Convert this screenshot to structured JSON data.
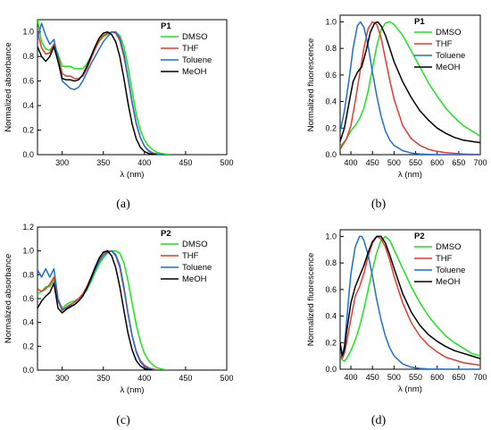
{
  "chart_data": [
    {
      "type": "line",
      "caption": "(a)",
      "title": "P1",
      "xlabel": "λ (nm)",
      "ylabel": "Normalized absorbance",
      "xlim": [
        270,
        500
      ],
      "ylim": [
        0,
        1.1
      ],
      "xticks": [
        "300",
        "350",
        "400",
        "450",
        "500"
      ],
      "yticks": [
        "0.0",
        "0.2",
        "0.4",
        "0.6",
        "0.8",
        "1.0"
      ],
      "legend_position": "top-right",
      "series": [
        {
          "name": "DMSO",
          "color": "#19e619",
          "x": [
            270,
            275,
            280,
            285,
            290,
            295,
            300,
            305,
            310,
            315,
            320,
            325,
            330,
            335,
            340,
            345,
            350,
            355,
            360,
            365,
            370,
            375,
            380,
            385,
            390,
            395,
            400,
            405,
            410,
            415,
            420,
            425,
            430
          ],
          "y": [
            1.1,
            0.92,
            0.86,
            0.85,
            0.9,
            0.82,
            0.72,
            0.72,
            0.72,
            0.7,
            0.7,
            0.7,
            0.74,
            0.8,
            0.86,
            0.92,
            0.96,
            0.98,
            1.0,
            1.0,
            0.97,
            0.88,
            0.72,
            0.52,
            0.33,
            0.2,
            0.12,
            0.07,
            0.04,
            0.02,
            0.01,
            0.005,
            0.0
          ]
        },
        {
          "name": "THF",
          "color": "#e8382c",
          "x": [
            270,
            275,
            280,
            285,
            290,
            295,
            300,
            305,
            310,
            315,
            320,
            325,
            330,
            335,
            340,
            345,
            350,
            355,
            360,
            365,
            370,
            375,
            380,
            385,
            390,
            395,
            400,
            405,
            410,
            415,
            420
          ],
          "y": [
            1.0,
            0.87,
            0.82,
            0.83,
            0.9,
            0.8,
            0.66,
            0.64,
            0.64,
            0.62,
            0.62,
            0.64,
            0.7,
            0.78,
            0.86,
            0.93,
            0.97,
            0.99,
            1.0,
            0.99,
            0.93,
            0.8,
            0.62,
            0.42,
            0.25,
            0.14,
            0.07,
            0.035,
            0.015,
            0.005,
            0.0
          ]
        },
        {
          "name": "Toluene",
          "color": "#1c6fd1",
          "x": [
            270,
            275,
            280,
            285,
            290,
            295,
            300,
            305,
            310,
            315,
            320,
            325,
            330,
            335,
            340,
            345,
            350,
            355,
            360,
            365,
            370,
            375,
            380,
            385,
            390,
            395,
            400,
            405,
            410,
            415,
            420
          ],
          "y": [
            0.95,
            1.07,
            0.97,
            0.9,
            0.94,
            0.78,
            0.6,
            0.57,
            0.54,
            0.53,
            0.55,
            0.6,
            0.67,
            0.74,
            0.8,
            0.86,
            0.92,
            0.96,
            1.0,
            1.0,
            0.95,
            0.82,
            0.63,
            0.43,
            0.26,
            0.14,
            0.07,
            0.03,
            0.01,
            0.005,
            0.0
          ]
        },
        {
          "name": "MeOH",
          "color": "#000000",
          "x": [
            270,
            275,
            280,
            285,
            290,
            295,
            300,
            305,
            310,
            315,
            320,
            325,
            330,
            335,
            340,
            345,
            350,
            355,
            360,
            365,
            370,
            375,
            380,
            385,
            390,
            395,
            400,
            405,
            410,
            415
          ],
          "y": [
            0.88,
            0.8,
            0.76,
            0.8,
            0.88,
            0.76,
            0.62,
            0.61,
            0.61,
            0.6,
            0.61,
            0.65,
            0.72,
            0.8,
            0.88,
            0.95,
            0.99,
            1.0,
            0.98,
            0.92,
            0.8,
            0.62,
            0.42,
            0.25,
            0.13,
            0.06,
            0.025,
            0.01,
            0.003,
            0.0
          ]
        }
      ]
    },
    {
      "type": "line",
      "caption": "(b)",
      "title": "P1",
      "xlabel": "λ (nm)",
      "ylabel": "Normalized fluorescence",
      "xlim": [
        375,
        700
      ],
      "ylim": [
        0,
        1.05
      ],
      "xticks": [
        "400",
        "450",
        "500",
        "550",
        "600",
        "650",
        "700"
      ],
      "yticks": [
        "0.0",
        "0.2",
        "0.4",
        "0.6",
        "0.8",
        "1.0"
      ],
      "legend_position": "top-right",
      "series": [
        {
          "name": "DMSO",
          "color": "#19e619",
          "x": [
            375,
            390,
            400,
            410,
            420,
            430,
            440,
            450,
            460,
            470,
            480,
            490,
            500,
            520,
            540,
            560,
            580,
            600,
            620,
            640,
            660,
            680,
            700
          ],
          "y": [
            0.06,
            0.12,
            0.18,
            0.22,
            0.27,
            0.35,
            0.48,
            0.65,
            0.82,
            0.94,
            0.99,
            1.0,
            0.98,
            0.9,
            0.78,
            0.66,
            0.54,
            0.44,
            0.35,
            0.28,
            0.22,
            0.18,
            0.14
          ]
        },
        {
          "name": "THF",
          "color": "#e8382c",
          "x": [
            375,
            390,
            400,
            410,
            420,
            430,
            440,
            450,
            460,
            470,
            480,
            490,
            500,
            520,
            540,
            560,
            580,
            600,
            620,
            640,
            660,
            680,
            700
          ],
          "y": [
            0.04,
            0.12,
            0.22,
            0.4,
            0.6,
            0.8,
            0.95,
            1.0,
            0.98,
            0.88,
            0.72,
            0.56,
            0.42,
            0.22,
            0.12,
            0.07,
            0.04,
            0.025,
            0.015,
            0.01,
            0.005,
            0.003,
            0.002
          ]
        },
        {
          "name": "Toluene",
          "color": "#1c6fd1",
          "x": [
            375,
            385,
            395,
            405,
            415,
            422,
            430,
            440,
            450,
            460,
            470,
            480,
            490,
            500,
            520,
            540,
            560,
            580,
            600,
            650,
            700
          ],
          "y": [
            0.17,
            0.33,
            0.55,
            0.8,
            0.97,
            1.0,
            0.96,
            0.82,
            0.62,
            0.44,
            0.29,
            0.18,
            0.11,
            0.07,
            0.03,
            0.012,
            0.005,
            0.002,
            0.001,
            0.0,
            0.0
          ]
        },
        {
          "name": "MeOH",
          "color": "#000000",
          "x": [
            375,
            385,
            395,
            405,
            415,
            425,
            435,
            445,
            455,
            462,
            470,
            480,
            490,
            500,
            520,
            540,
            560,
            580,
            600,
            620,
            640,
            660,
            680,
            700
          ],
          "y": [
            0.1,
            0.2,
            0.38,
            0.55,
            0.62,
            0.66,
            0.78,
            0.92,
            0.99,
            1.0,
            0.97,
            0.9,
            0.8,
            0.7,
            0.55,
            0.43,
            0.33,
            0.26,
            0.2,
            0.16,
            0.13,
            0.11,
            0.1,
            0.09
          ]
        }
      ]
    },
    {
      "type": "line",
      "caption": "(c)",
      "title": "P2",
      "xlabel": "λ (nm)",
      "ylabel": "Normalized absorbance",
      "xlim": [
        270,
        500
      ],
      "ylim": [
        0,
        1.2
      ],
      "xticks": [
        "300",
        "350",
        "400",
        "450",
        "500"
      ],
      "yticks": [
        "0.0",
        "0.2",
        "0.4",
        "0.6",
        "0.8",
        "1.0",
        "1.2"
      ],
      "legend_position": "top-right",
      "series": [
        {
          "name": "DMSO",
          "color": "#19e619",
          "x": [
            270,
            275,
            280,
            285,
            290,
            295,
            300,
            305,
            310,
            315,
            320,
            325,
            330,
            335,
            340,
            345,
            350,
            355,
            360,
            365,
            370,
            375,
            380,
            385,
            390,
            395,
            400,
            405,
            410,
            415,
            420,
            425,
            430
          ],
          "y": [
            0.64,
            0.66,
            0.7,
            0.7,
            0.76,
            0.58,
            0.52,
            0.55,
            0.57,
            0.58,
            0.6,
            0.63,
            0.67,
            0.74,
            0.82,
            0.89,
            0.94,
            0.98,
            1.0,
            1.0,
            0.98,
            0.9,
            0.75,
            0.56,
            0.38,
            0.24,
            0.14,
            0.08,
            0.045,
            0.02,
            0.01,
            0.004,
            0.0
          ]
        },
        {
          "name": "THF",
          "color": "#e8382c",
          "x": [
            270,
            275,
            280,
            285,
            290,
            295,
            300,
            305,
            310,
            315,
            320,
            325,
            330,
            335,
            340,
            345,
            350,
            355,
            360,
            365,
            370,
            375,
            380,
            385,
            390,
            395,
            400,
            405,
            410,
            415,
            420
          ],
          "y": [
            0.68,
            0.66,
            0.68,
            0.72,
            0.78,
            0.58,
            0.5,
            0.53,
            0.55,
            0.57,
            0.6,
            0.64,
            0.7,
            0.78,
            0.86,
            0.93,
            0.98,
            1.0,
            1.0,
            0.96,
            0.86,
            0.68,
            0.47,
            0.29,
            0.16,
            0.08,
            0.04,
            0.02,
            0.008,
            0.003,
            0.0
          ]
        },
        {
          "name": "Toluene",
          "color": "#1c6fd1",
          "x": [
            270,
            275,
            280,
            285,
            290,
            295,
            300,
            305,
            310,
            315,
            320,
            325,
            330,
            335,
            340,
            345,
            350,
            355,
            360,
            365,
            370,
            375,
            380,
            385,
            390,
            395,
            400,
            405,
            410,
            415
          ],
          "y": [
            0.84,
            0.78,
            0.85,
            0.78,
            0.85,
            0.6,
            0.51,
            0.52,
            0.54,
            0.55,
            0.58,
            0.62,
            0.68,
            0.76,
            0.84,
            0.91,
            0.96,
            0.99,
            1.0,
            0.97,
            0.88,
            0.7,
            0.48,
            0.29,
            0.15,
            0.07,
            0.03,
            0.012,
            0.004,
            0.0
          ]
        },
        {
          "name": "MeOH",
          "color": "#000000",
          "x": [
            270,
            275,
            280,
            285,
            290,
            295,
            300,
            305,
            310,
            315,
            320,
            325,
            330,
            335,
            340,
            345,
            350,
            355,
            360,
            365,
            370,
            375,
            380,
            385,
            390,
            395,
            400,
            405,
            410
          ],
          "y": [
            0.52,
            0.58,
            0.62,
            0.65,
            0.73,
            0.52,
            0.48,
            0.51,
            0.53,
            0.55,
            0.58,
            0.62,
            0.69,
            0.77,
            0.86,
            0.94,
            0.99,
            1.0,
            0.96,
            0.86,
            0.7,
            0.5,
            0.31,
            0.17,
            0.08,
            0.035,
            0.012,
            0.004,
            0.0
          ]
        }
      ]
    },
    {
      "type": "line",
      "caption": "(d)",
      "title": "P2",
      "xlabel": "λ (nm)",
      "ylabel": "Normalized fluorescence",
      "xlim": [
        375,
        700
      ],
      "ylim": [
        0,
        1.05
      ],
      "xticks": [
        "400",
        "450",
        "500",
        "550",
        "600",
        "650",
        "700"
      ],
      "yticks": [
        "0.0",
        "0.2",
        "0.4",
        "0.6",
        "0.8",
        "1.0"
      ],
      "legend_position": "top-right",
      "series": [
        {
          "name": "DMSO",
          "color": "#19e619",
          "x": [
            375,
            380,
            385,
            390,
            400,
            410,
            420,
            430,
            440,
            450,
            460,
            470,
            480,
            490,
            500,
            520,
            540,
            560,
            580,
            600,
            620,
            640,
            660,
            680,
            700
          ],
          "y": [
            0.12,
            0.07,
            0.06,
            0.08,
            0.14,
            0.22,
            0.32,
            0.45,
            0.6,
            0.75,
            0.88,
            0.97,
            1.0,
            0.97,
            0.9,
            0.76,
            0.62,
            0.5,
            0.4,
            0.32,
            0.25,
            0.2,
            0.16,
            0.12,
            0.1
          ]
        },
        {
          "name": "THF",
          "color": "#e8382c",
          "x": [
            375,
            380,
            385,
            390,
            400,
            410,
            420,
            430,
            440,
            450,
            460,
            470,
            480,
            490,
            500,
            520,
            540,
            560,
            580,
            600,
            620,
            640,
            660,
            680,
            700
          ],
          "y": [
            0.1,
            0.08,
            0.12,
            0.2,
            0.38,
            0.55,
            0.62,
            0.72,
            0.85,
            0.95,
            1.0,
            0.98,
            0.92,
            0.82,
            0.7,
            0.5,
            0.35,
            0.25,
            0.18,
            0.13,
            0.09,
            0.07,
            0.05,
            0.04,
            0.03
          ]
        },
        {
          "name": "Toluene",
          "color": "#1c6fd1",
          "x": [
            375,
            380,
            385,
            390,
            395,
            400,
            410,
            420,
            425,
            430,
            440,
            450,
            460,
            470,
            480,
            490,
            500,
            520,
            540,
            560,
            580,
            600,
            650,
            700
          ],
          "y": [
            0.13,
            0.1,
            0.18,
            0.35,
            0.55,
            0.72,
            0.92,
            1.0,
            1.0,
            0.97,
            0.86,
            0.7,
            0.52,
            0.37,
            0.25,
            0.16,
            0.1,
            0.04,
            0.015,
            0.006,
            0.002,
            0.001,
            0.0,
            0.0
          ]
        },
        {
          "name": "MeOH",
          "color": "#000000",
          "x": [
            375,
            380,
            385,
            390,
            400,
            410,
            420,
            430,
            440,
            450,
            460,
            470,
            480,
            490,
            500,
            520,
            540,
            560,
            580,
            600,
            620,
            640,
            660,
            680,
            700
          ],
          "y": [
            0.2,
            0.1,
            0.15,
            0.28,
            0.5,
            0.62,
            0.7,
            0.78,
            0.88,
            0.96,
            1.0,
            1.0,
            0.95,
            0.86,
            0.76,
            0.57,
            0.43,
            0.33,
            0.26,
            0.21,
            0.17,
            0.14,
            0.12,
            0.1,
            0.08
          ]
        }
      ]
    }
  ]
}
